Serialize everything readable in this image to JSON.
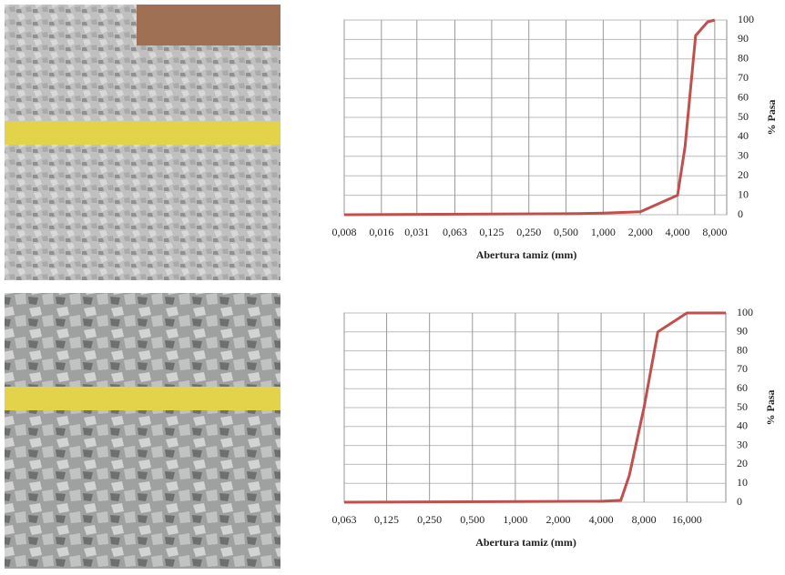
{
  "chart_data": [
    {
      "type": "line",
      "x_label": "Abertura tamiz (mm)",
      "y_label": "% Pasa",
      "log_x": true,
      "grid": true,
      "xlim": [
        0.008,
        10
      ],
      "ylim": [
        0,
        100
      ],
      "xticks": [
        {
          "value": 0.008,
          "label": "0,008"
        },
        {
          "value": 0.016,
          "label": "0,016"
        },
        {
          "value": 0.031,
          "label": "0,031"
        },
        {
          "value": 0.063,
          "label": "0,063"
        },
        {
          "value": 0.125,
          "label": "0,125"
        },
        {
          "value": 0.25,
          "label": "0,250"
        },
        {
          "value": 0.5,
          "label": "0,500"
        },
        {
          "value": 1,
          "label": "1,000"
        },
        {
          "value": 2,
          "label": "2,000"
        },
        {
          "value": 4,
          "label": "4,000"
        },
        {
          "value": 8,
          "label": "8,000"
        }
      ],
      "yticks": [
        0,
        10,
        20,
        30,
        40,
        50,
        60,
        70,
        80,
        90,
        100
      ],
      "series": [
        {
          "color": "#c0504d",
          "x": [
            0.008,
            0.5,
            1,
            2,
            4,
            4.6,
            5.6,
            7,
            8
          ],
          "values": [
            0,
            0.5,
            0.8,
            1.5,
            10,
            35,
            92,
            99,
            100
          ]
        }
      ]
    },
    {
      "type": "line",
      "x_label": "Abertura tamiz (mm)",
      "y_label": "% Pasa",
      "log_x": true,
      "grid": true,
      "xlim": [
        0.063,
        30
      ],
      "ylim": [
        0,
        100
      ],
      "xticks": [
        {
          "value": 0.063,
          "label": "0,063"
        },
        {
          "value": 0.125,
          "label": "0,125"
        },
        {
          "value": 0.25,
          "label": "0,250"
        },
        {
          "value": 0.5,
          "label": "0,500"
        },
        {
          "value": 1,
          "label": "1,000"
        },
        {
          "value": 2,
          "label": "2,000"
        },
        {
          "value": 4,
          "label": "4,000"
        },
        {
          "value": 8,
          "label": "8,000"
        },
        {
          "value": 16,
          "label": "16,000"
        }
      ],
      "yticks": [
        0,
        10,
        20,
        30,
        40,
        50,
        60,
        70,
        80,
        90,
        100
      ],
      "series": [
        {
          "color": "#c0504d",
          "x": [
            0.063,
            4,
            5.5,
            6.3,
            8,
            10,
            16,
            30
          ],
          "values": [
            0,
            0.5,
            1,
            14,
            50,
            90,
            100,
            100
          ]
        }
      ]
    }
  ]
}
